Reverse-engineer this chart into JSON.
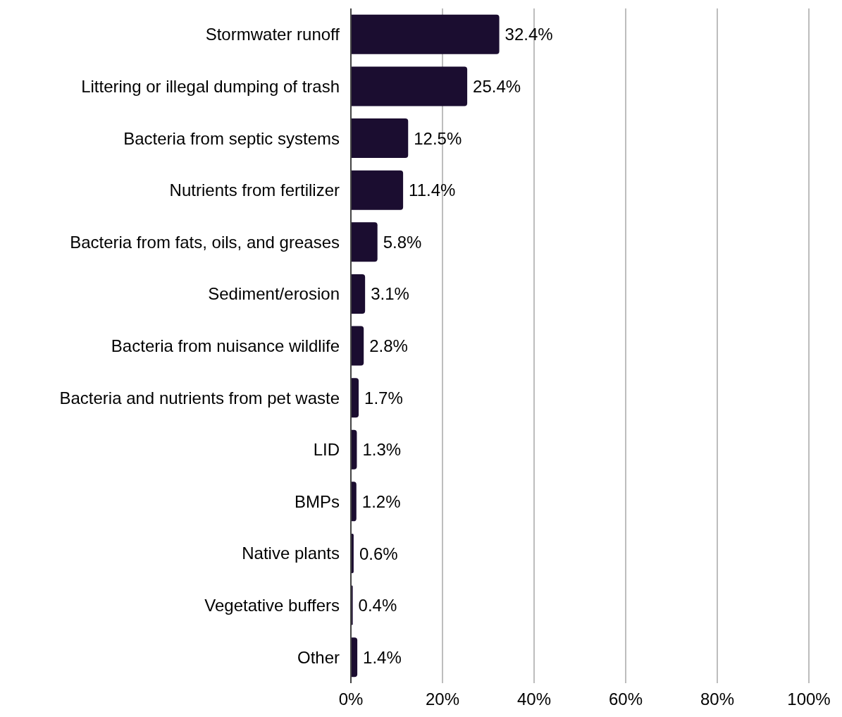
{
  "chart_data": {
    "type": "bar",
    "orientation": "horizontal",
    "categories": [
      "Stormwater runoff",
      "Littering or illegal dumping of trash",
      "Bacteria from septic systems",
      "Nutrients from fertilizer",
      "Bacteria from fats, oils, and greases",
      "Sediment/erosion",
      "Bacteria from nuisance wildlife",
      "Bacteria and nutrients from pet waste",
      "LID",
      "BMPs",
      "Native plants",
      "Vegetative buffers",
      "Other"
    ],
    "values": [
      32.4,
      25.4,
      12.5,
      11.4,
      5.8,
      3.1,
      2.8,
      1.7,
      1.3,
      1.2,
      0.6,
      0.4,
      1.4
    ],
    "value_labels": [
      "32.4%",
      "25.4%",
      "12.5%",
      "11.4%",
      "5.8%",
      "3.1%",
      "2.8%",
      "1.7%",
      "1.3%",
      "1.2%",
      "0.6%",
      "0.4%",
      "1.4%"
    ],
    "color": "#1b0d30",
    "xlim": [
      0,
      100
    ],
    "xticks": [
      {
        "value": 0,
        "label": "0%"
      },
      {
        "value": 20,
        "label": "20%"
      },
      {
        "value": 40,
        "label": "40%"
      },
      {
        "value": 60,
        "label": "60%"
      },
      {
        "value": 80,
        "label": "80%"
      },
      {
        "value": 100,
        "label": "100%"
      }
    ],
    "grid": "x"
  }
}
